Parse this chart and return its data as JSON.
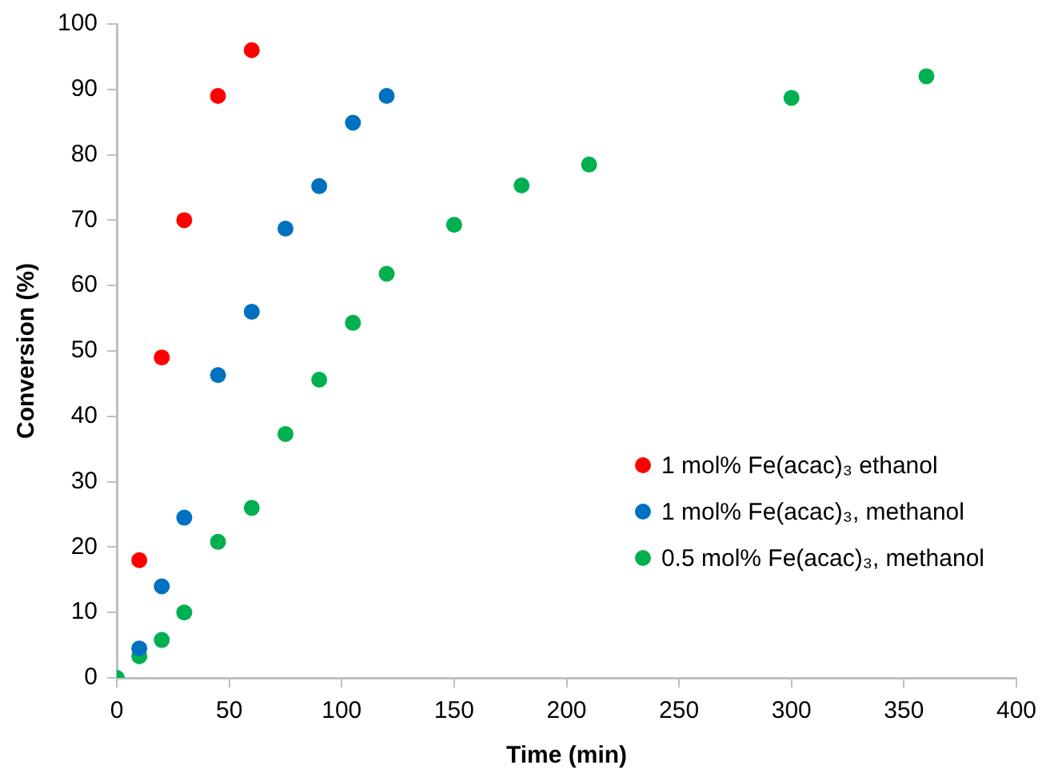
{
  "chart_data": {
    "type": "scatter",
    "xlabel": "Time (min)",
    "ylabel": "Conversion (%)",
    "xlim": [
      0,
      400
    ],
    "xticks": [
      0,
      50,
      100,
      150,
      200,
      250,
      300,
      350,
      400
    ],
    "ylim": [
      0,
      100
    ],
    "yticks": [
      0,
      10,
      20,
      30,
      40,
      50,
      60,
      70,
      80,
      90,
      100
    ],
    "grid": false,
    "legend": "right",
    "marker": "circle",
    "series": [
      {
        "name": "1 mol% Fe(acac)₃ ethanol",
        "color": "#ff0000",
        "x": [
          10,
          20,
          30,
          45,
          60
        ],
        "values": [
          18,
          49,
          70,
          89,
          96
        ]
      },
      {
        "name": "1 mol% Fe(acac)₃, methanol",
        "color": "#0070c0",
        "x": [
          10,
          20,
          30,
          45,
          60,
          75,
          90,
          105,
          120
        ],
        "values": [
          4.5,
          14,
          24.5,
          46.3,
          56,
          68.7,
          75.2,
          84.9,
          89
        ]
      },
      {
        "name": "0.5 mol% Fe(acac)₃, methanol",
        "color": "#00b050",
        "x": [
          0,
          10,
          20,
          30,
          45,
          60,
          75,
          90,
          105,
          120,
          150,
          180,
          210,
          300,
          360
        ],
        "values": [
          0,
          3.3,
          5.8,
          10,
          20.8,
          26,
          37.3,
          45.6,
          54.3,
          61.8,
          69.3,
          75.3,
          78.5,
          88.7,
          92
        ]
      }
    ]
  }
}
